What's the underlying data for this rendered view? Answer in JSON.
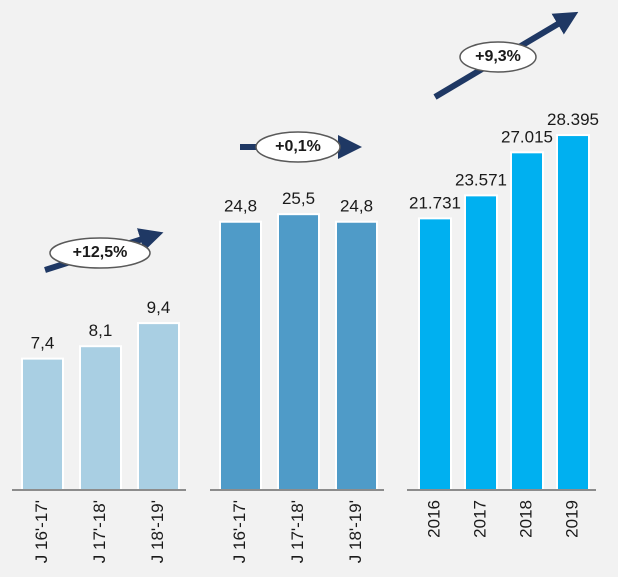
{
  "chart_data": [
    {
      "type": "bar",
      "categories": [
        "J 16'-17'",
        "J 17'-18'",
        "J 18'-19'"
      ],
      "values": [
        7.4,
        8.1,
        9.4
      ],
      "value_labels": [
        "7,4",
        "8,1",
        "9,4"
      ],
      "color": "#a9cfe3",
      "ylim": [
        0,
        27.6
      ],
      "annotation": "+12,5%"
    },
    {
      "type": "bar",
      "categories": [
        "J 16'-17'",
        "J 17'-18'",
        "J 18'-19'"
      ],
      "values": [
        24.8,
        25.5,
        24.8
      ],
      "value_labels": [
        "24,8",
        "25,5",
        "24,8"
      ],
      "color": "#4f9bc8",
      "ylim": [
        0,
        45.3
      ],
      "annotation": "+0,1%"
    },
    {
      "type": "bar",
      "categories": [
        "2016",
        "2017",
        "2018",
        "2019"
      ],
      "values": [
        21731,
        23571,
        27015,
        28395
      ],
      "value_labels": [
        "21.731",
        "23.571",
        "27.015",
        "28.395"
      ],
      "color": "#00b0f0",
      "ylim": [
        0,
        39200
      ],
      "annotation": "+9,3%"
    }
  ]
}
